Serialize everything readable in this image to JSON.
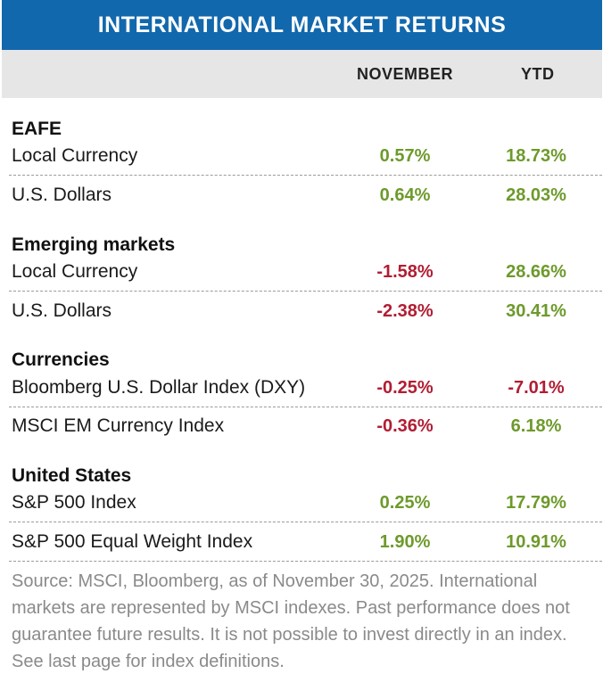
{
  "title": "INTERNATIONAL MARKET RETURNS",
  "columns": {
    "november": "NOVEMBER",
    "ytd": "YTD"
  },
  "groups": [
    {
      "title": "EAFE",
      "rows": [
        {
          "label": "Local Currency",
          "november": "0.57%",
          "ytd": "18.73%"
        },
        {
          "label": "U.S. Dollars",
          "november": "0.64%",
          "ytd": "28.03%"
        }
      ]
    },
    {
      "title": "Emerging markets",
      "rows": [
        {
          "label": "Local Currency",
          "november": "-1.58%",
          "ytd": "28.66%"
        },
        {
          "label": "U.S. Dollars",
          "november": "-2.38%",
          "ytd": "30.41%"
        }
      ]
    },
    {
      "title": "Currencies",
      "rows": [
        {
          "label": "Bloomberg U.S. Dollar Index (DXY)",
          "november": "-0.25%",
          "ytd": "-7.01%"
        },
        {
          "label": "MSCI EM Currency Index",
          "november": "-0.36%",
          "ytd": "6.18%"
        }
      ]
    },
    {
      "title": "United States",
      "rows": [
        {
          "label": "S&P 500 Index",
          "november": "0.25%",
          "ytd": "17.79%"
        },
        {
          "label": "S&P 500 Equal Weight Index",
          "november": "1.90%",
          "ytd": "10.91%"
        }
      ]
    }
  ],
  "source": "Source: MSCI, Bloomberg, as of November 30, 2025. International markets are represented by MSCI indexes. Past performance does not guarantee future results. It is not possible to invest directly in an index. See last page for index definitions.",
  "colors": {
    "title_bg": "#1268ad",
    "header_bg": "#e6e6e6",
    "positive": "#6d9a2b",
    "negative": "#b11d33",
    "source_text": "#8a8a8a"
  }
}
